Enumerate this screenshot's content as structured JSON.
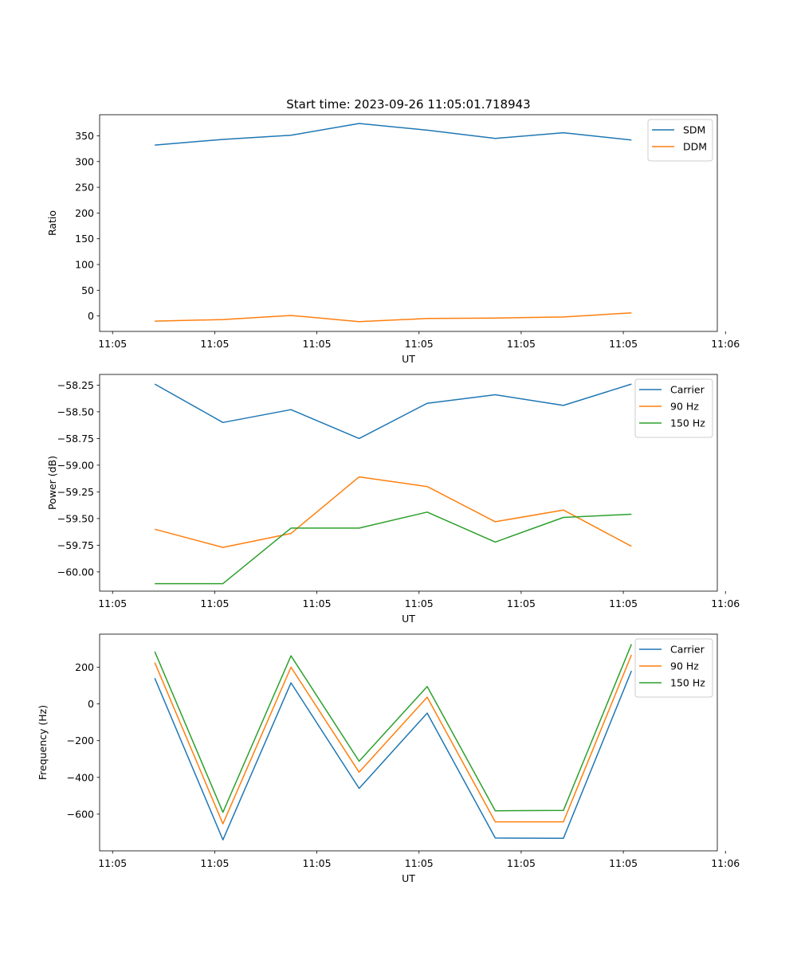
{
  "figure": {
    "title": "Start time: 2023-09-26 11:05:01.718943"
  },
  "chart_data": [
    {
      "type": "line",
      "title": "Start time: 2023-09-26 11:05:01.718943",
      "xlabel": "UT",
      "ylabel": "Ratio",
      "x": [
        1,
        2,
        3,
        4,
        5,
        6,
        7,
        8
      ],
      "xlim": [
        0.19,
        9.26
      ],
      "xticks": [
        0.38,
        1.88,
        3.38,
        4.88,
        6.38,
        7.88,
        9.38
      ],
      "xtick_labels": [
        "11:05",
        "11:05",
        "11:05",
        "11:05",
        "11:05",
        "11:05",
        "11:06"
      ],
      "ylim": [
        -30.0,
        391.0
      ],
      "yticks": [
        0,
        50,
        100,
        150,
        200,
        250,
        300,
        350
      ],
      "ytick_labels": [
        "0",
        "50",
        "100",
        "150",
        "200",
        "250",
        "300",
        "350"
      ],
      "legend_position": "top-right",
      "series": [
        {
          "name": "SDM",
          "color": "#1f77b4",
          "values": [
            332,
            343,
            351,
            374,
            361,
            345,
            356,
            342
          ]
        },
        {
          "name": "DDM",
          "color": "#ff7f0e",
          "values": [
            -10,
            -7,
            1,
            -11,
            -5,
            -4,
            -2,
            6
          ]
        }
      ]
    },
    {
      "type": "line",
      "title": "",
      "xlabel": "UT",
      "ylabel": "Power (dB)",
      "x": [
        1,
        2,
        3,
        4,
        5,
        6,
        7,
        8
      ],
      "xlim": [
        0.19,
        9.26
      ],
      "xticks": [
        0.38,
        1.88,
        3.38,
        4.88,
        6.38,
        7.88,
        9.38
      ],
      "xtick_labels": [
        "11:05",
        "11:05",
        "11:05",
        "11:05",
        "11:05",
        "11:05",
        "11:06"
      ],
      "ylim": [
        -60.18,
        -58.15
      ],
      "yticks": [
        -60.0,
        -59.75,
        -59.5,
        -59.25,
        -59.0,
        -58.75,
        -58.5,
        -58.25
      ],
      "ytick_labels": [
        "−60.00",
        "−59.75",
        "−59.50",
        "−59.25",
        "−59.00",
        "−58.75",
        "−58.50",
        "−58.25"
      ],
      "legend_position": "top-right",
      "series": [
        {
          "name": "Carrier",
          "color": "#1f77b4",
          "values": [
            -58.24,
            -58.6,
            -58.48,
            -58.75,
            -58.42,
            -58.34,
            -58.44,
            -58.24
          ]
        },
        {
          "name": "90 Hz",
          "color": "#ff7f0e",
          "values": [
            -59.6,
            -59.77,
            -59.64,
            -59.11,
            -59.2,
            -59.53,
            -59.42,
            -59.76
          ]
        },
        {
          "name": "150 Hz",
          "color": "#2ca02c",
          "values": [
            -60.11,
            -60.11,
            -59.59,
            -59.59,
            -59.44,
            -59.72,
            -59.49,
            -59.46
          ]
        }
      ]
    },
    {
      "type": "line",
      "title": "",
      "xlabel": "UT",
      "ylabel": "Frequency (Hz)",
      "x": [
        1,
        2,
        3,
        4,
        5,
        6,
        7,
        8
      ],
      "xlim": [
        0.19,
        9.26
      ],
      "xticks": [
        0.38,
        1.88,
        3.38,
        4.88,
        6.38,
        7.88,
        9.38
      ],
      "xtick_labels": [
        "11:05",
        "11:05",
        "11:05",
        "11:05",
        "11:05",
        "11:05",
        "11:06"
      ],
      "ylim": [
        -800,
        380
      ],
      "yticks": [
        -600,
        -400,
        -200,
        0,
        200
      ],
      "ytick_labels": [
        "−600",
        "−400",
        "−200",
        "0",
        "200"
      ],
      "legend_position": "top-right",
      "series": [
        {
          "name": "Carrier",
          "color": "#1f77b4",
          "values": [
            140,
            -740,
            115,
            -460,
            -50,
            -730,
            -732,
            180
          ]
        },
        {
          "name": "90 Hz",
          "color": "#ff7f0e",
          "values": [
            225,
            -653,
            200,
            -372,
            37,
            -642,
            -642,
            267
          ]
        },
        {
          "name": "150 Hz",
          "color": "#2ca02c",
          "values": [
            285,
            -590,
            262,
            -312,
            95,
            -582,
            -580,
            325
          ]
        }
      ]
    }
  ]
}
